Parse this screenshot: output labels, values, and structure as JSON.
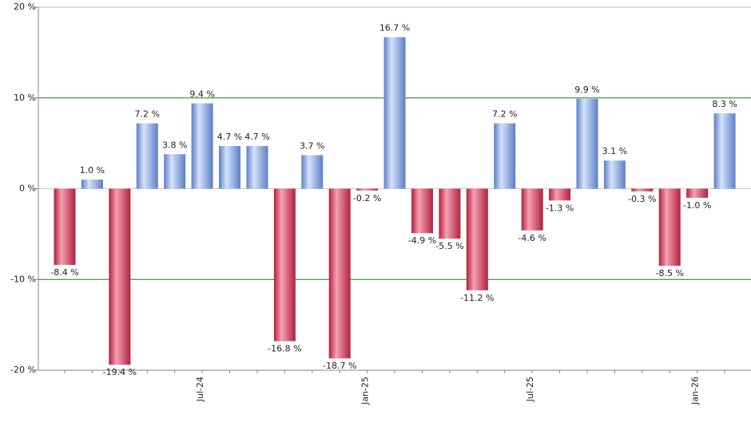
{
  "chart_data": {
    "type": "bar",
    "categories": [
      null,
      null,
      null,
      null,
      null,
      "Jul-24",
      null,
      null,
      null,
      null,
      null,
      "Jan-25",
      null,
      null,
      null,
      null,
      null,
      "Jul-25",
      null,
      null,
      null,
      null,
      null,
      "Jan-26",
      null
    ],
    "values": [
      -8.4,
      1.0,
      -19.4,
      7.2,
      3.8,
      9.4,
      4.7,
      4.7,
      -16.8,
      3.7,
      -18.7,
      -0.2,
      16.7,
      -4.9,
      -5.5,
      -11.2,
      7.2,
      -4.6,
      -1.3,
      9.9,
      3.1,
      -0.3,
      -8.5,
      -1.0,
      8.3
    ],
    "value_labels": [
      "-8.4 %",
      "1.0 %",
      "-19.4 %",
      "7.2 %",
      "3.8 %",
      "9.4 %",
      "4.7 %",
      "4.7 %",
      "-16.8 %",
      "3.7 %",
      "-18.7 %",
      "-0.2 %",
      "16.7 %",
      "-4.9 %",
      "-5.5 %",
      "-11.2 %",
      "7.2 %",
      "-4.6 %",
      "-1.3 %",
      "9.9 %",
      "3.1 %",
      "-0.3 %",
      "-8.5 %",
      "-1.0 %",
      "8.3 %"
    ],
    "ylim": [
      -20,
      20
    ],
    "yticks": [
      {
        "value": -20,
        "label": "-20 %"
      },
      {
        "value": -10,
        "label": "-10 %"
      },
      {
        "value": 0,
        "label": "0 %"
      },
      {
        "value": 10,
        "label": "10 %"
      },
      {
        "value": 20,
        "label": "20 %"
      }
    ],
    "grid": true,
    "grid_color": "#1a7a1a",
    "positive_color": "#5b7fc8",
    "negative_color": "#b0213f"
  }
}
